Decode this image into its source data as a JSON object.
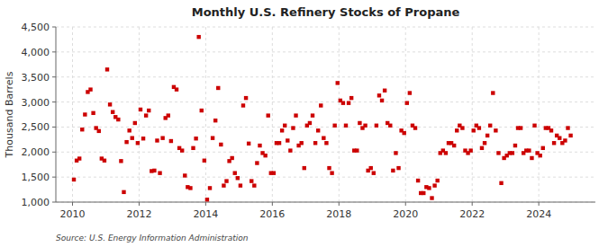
{
  "chart_data": {
    "type": "scatter",
    "title": "Monthly U.S. Refinery Stocks of Propane",
    "ylabel": "Thousand Barrels",
    "annotations": [
      "Source: U.S. Energy Information Administration"
    ],
    "color": "#cc0000",
    "marker": "square",
    "grid": true,
    "xlim": [
      2009.5,
      2025.7
    ],
    "xticks": [
      2010,
      2012,
      2014,
      2016,
      2018,
      2020,
      2022,
      2024
    ],
    "ylim": [
      1000,
      4500
    ],
    "yticks": [
      {
        "value": 1000,
        "label": "1,000"
      },
      {
        "value": 1500,
        "label": "1,500"
      },
      {
        "value": 2000,
        "label": "2,000"
      },
      {
        "value": 2500,
        "label": "2,500"
      },
      {
        "value": 3000,
        "label": "3,000"
      },
      {
        "value": 3500,
        "label": "3,500"
      },
      {
        "value": 4000,
        "label": "4,000"
      },
      {
        "value": 4500,
        "label": "4,500"
      }
    ],
    "x": [
      2010.041666666667,
      2010.125,
      2010.208333333333,
      2010.291666666667,
      2010.375,
      2010.458333333333,
      2010.541666666667,
      2010.625,
      2010.708333333333,
      2010.791666666667,
      2010.875,
      2010.958333333333,
      2011.041666666667,
      2011.125,
      2011.208333333333,
      2011.291666666667,
      2011.375,
      2011.458333333333,
      2011.541666666667,
      2011.625,
      2011.708333333333,
      2011.791666666667,
      2011.875,
      2011.958333333333,
      2012.041666666667,
      2012.125,
      2012.208333333333,
      2012.291666666667,
      2012.375,
      2012.458333333333,
      2012.541666666667,
      2012.625,
      2012.708333333333,
      2012.791666666667,
      2012.875,
      2012.958333333333,
      2013.041666666667,
      2013.125,
      2013.208333333333,
      2013.291666666667,
      2013.375,
      2013.458333333333,
      2013.541666666667,
      2013.625,
      2013.708333333333,
      2013.791666666667,
      2013.875,
      2013.958333333333,
      2014.041666666667,
      2014.125,
      2014.208333333333,
      2014.291666666667,
      2014.375,
      2014.458333333333,
      2014.541666666667,
      2014.625,
      2014.708333333333,
      2014.791666666667,
      2014.875,
      2014.958333333333,
      2015.041666666667,
      2015.125,
      2015.208333333333,
      2015.291666666667,
      2015.375,
      2015.458333333333,
      2015.541666666667,
      2015.625,
      2015.708333333333,
      2015.791666666667,
      2015.875,
      2015.958333333333,
      2016.041666666667,
      2016.125,
      2016.208333333333,
      2016.291666666667,
      2016.375,
      2016.458333333333,
      2016.541666666667,
      2016.625,
      2016.708333333333,
      2016.791666666667,
      2016.875,
      2016.958333333333,
      2017.041666666667,
      2017.125,
      2017.208333333333,
      2017.291666666667,
      2017.375,
      2017.458333333333,
      2017.541666666667,
      2017.625,
      2017.708333333333,
      2017.791666666667,
      2017.875,
      2017.958333333333,
      2018.041666666667,
      2018.125,
      2018.208333333333,
      2018.291666666667,
      2018.375,
      2018.458333333333,
      2018.541666666667,
      2018.625,
      2018.708333333333,
      2018.791666666667,
      2018.875,
      2018.958333333333,
      2019.041666666667,
      2019.125,
      2019.208333333333,
      2019.291666666667,
      2019.375,
      2019.458333333333,
      2019.541666666667,
      2019.625,
      2019.708333333333,
      2019.791666666667,
      2019.875,
      2019.958333333333,
      2020.041666666667,
      2020.125,
      2020.208333333333,
      2020.291666666667,
      2020.375,
      2020.458333333333,
      2020.541666666667,
      2020.625,
      2020.708333333333,
      2020.791666666667,
      2020.875,
      2020.958333333333,
      2021.041666666667,
      2021.125,
      2021.208333333333,
      2021.291666666667,
      2021.375,
      2021.458333333333,
      2021.541666666667,
      2021.625,
      2021.708333333333,
      2021.791666666667,
      2021.875,
      2021.958333333333,
      2022.041666666667,
      2022.125,
      2022.208333333333,
      2022.291666666667,
      2022.375,
      2022.458333333333,
      2022.541666666667,
      2022.625,
      2022.708333333333,
      2022.791666666667,
      2022.875,
      2022.958333333333,
      2023.041666666667,
      2023.125,
      2023.208333333333,
      2023.291666666667,
      2023.375,
      2023.458333333333,
      2023.541666666667,
      2023.625,
      2023.708333333333,
      2023.791666666667,
      2023.875,
      2023.958333333333,
      2024.041666666667,
      2024.125,
      2024.208333333333,
      2024.291666666667,
      2024.375,
      2024.458333333333,
      2024.541666666667,
      2024.625,
      2024.708333333333,
      2024.791666666667,
      2024.875,
      2024.958333333333
    ],
    "values": [
      1450,
      1830,
      1870,
      2450,
      2750,
      3200,
      3250,
      2780,
      2480,
      2420,
      1870,
      1830,
      3650,
      2950,
      2800,
      2700,
      2650,
      1820,
      1200,
      2200,
      2430,
      2280,
      2580,
      2180,
      2850,
      2270,
      2730,
      2830,
      1620,
      1630,
      2230,
      1580,
      2280,
      2680,
      2730,
      2220,
      3300,
      3250,
      2080,
      2030,
      1530,
      1300,
      1280,
      2080,
      2270,
      4300,
      2830,
      1830,
      1050,
      1280,
      2280,
      2630,
      3280,
      2150,
      1330,
      1420,
      1820,
      1880,
      1580,
      1480,
      1330,
      2930,
      3080,
      2170,
      1420,
      1330,
      1780,
      2130,
      1980,
      1930,
      2730,
      1580,
      1580,
      2180,
      2180,
      2430,
      2530,
      2230,
      2030,
      2480,
      2730,
      2130,
      2180,
      1680,
      2530,
      2580,
      2730,
      2180,
      2430,
      2930,
      2280,
      2180,
      1680,
      1580,
      2530,
      3380,
      3030,
      2980,
      2530,
      2980,
      3080,
      2030,
      2030,
      2580,
      2480,
      2530,
      1630,
      1680,
      1580,
      2530,
      3130,
      3030,
      3230,
      2580,
      2530,
      1630,
      1980,
      1680,
      2430,
      2380,
      2980,
      3180,
      2530,
      2480,
      1430,
      1180,
      1180,
      1300,
      1280,
      1080,
      1330,
      1430,
      1980,
      2030,
      1980,
      2180,
      2180,
      2130,
      2430,
      2530,
      2480,
      2030,
      1980,
      2030,
      2430,
      2530,
      2480,
      2080,
      2180,
      2330,
      2530,
      3180,
      2430,
      1980,
      1380,
      1880,
      1930,
      1980,
      1980,
      2130,
      2480,
      2480,
      1980,
      2030,
      2030,
      1880,
      2530,
      1980,
      1930,
      2080,
      2480,
      2480,
      2430,
      2180,
      2330,
      2280,
      2180,
      2230,
      2480,
      2330
    ]
  }
}
